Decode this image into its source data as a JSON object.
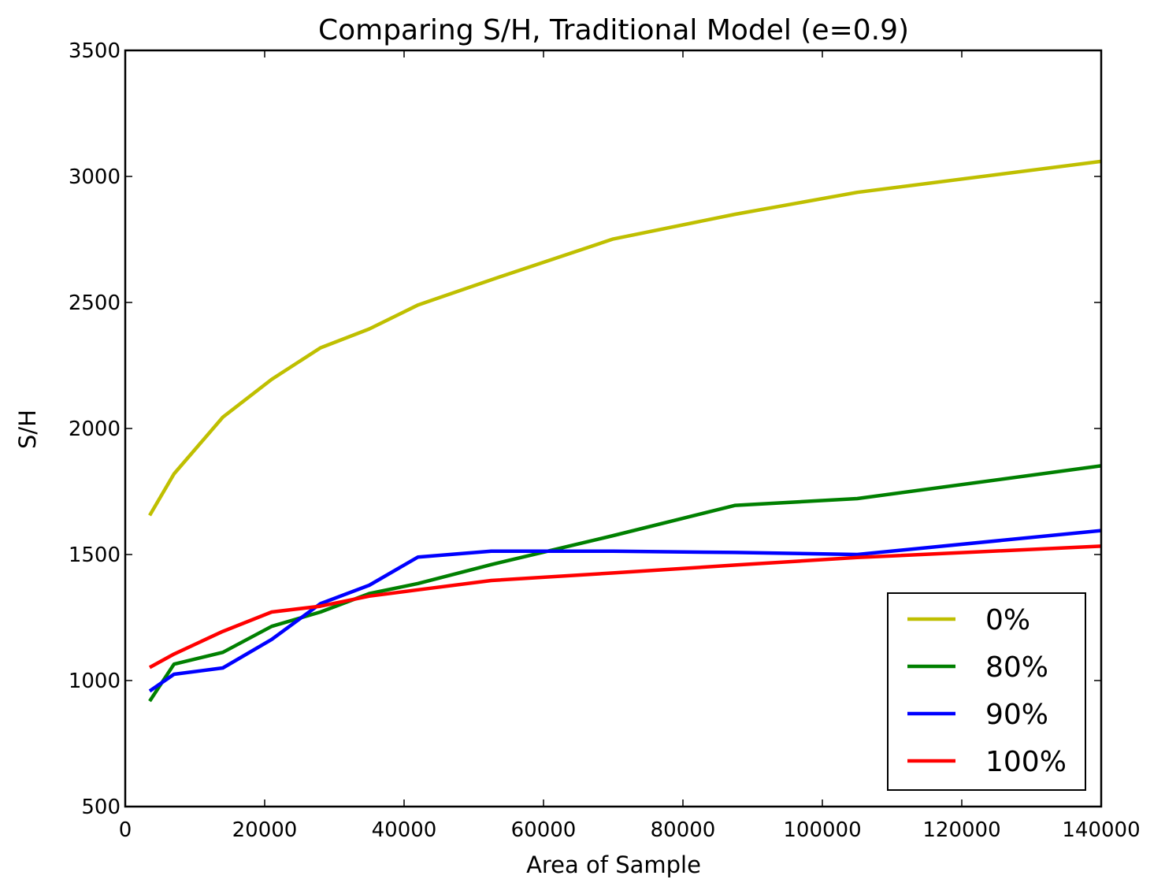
{
  "chart_data": {
    "type": "line",
    "title": "Comparing S/H, Traditional Model (e=0.9)",
    "xlabel": "Area of Sample",
    "ylabel": "S/H",
    "xlim": [
      0,
      140000
    ],
    "ylim": [
      500,
      3500
    ],
    "xticks": [
      0,
      20000,
      40000,
      60000,
      80000,
      100000,
      120000,
      140000
    ],
    "xtick_labels": [
      "0",
      "20000",
      "40000",
      "60000",
      "80000",
      "100000",
      "120000",
      "140000"
    ],
    "yticks": [
      500,
      1000,
      1500,
      2000,
      2500,
      3000,
      3500
    ],
    "ytick_labels": [
      "500",
      "1000",
      "1500",
      "2000",
      "2500",
      "3000",
      "3500"
    ],
    "grid": false,
    "legend_position": "lower-right",
    "series": [
      {
        "name": "0%",
        "color": "#bfbf00",
        "points": [
          [
            3500,
            1655
          ],
          [
            7000,
            1820
          ],
          [
            14000,
            2045
          ],
          [
            21000,
            2195
          ],
          [
            28000,
            2320
          ],
          [
            35000,
            2395
          ],
          [
            42000,
            2490
          ],
          [
            52500,
            2590
          ],
          [
            70000,
            2752
          ],
          [
            87500,
            2850
          ],
          [
            105000,
            2937
          ],
          [
            140000,
            3060
          ]
        ]
      },
      {
        "name": "80%",
        "color": "#008000",
        "points": [
          [
            3500,
            918
          ],
          [
            7000,
            1065
          ],
          [
            14000,
            1112
          ],
          [
            21000,
            1215
          ],
          [
            28000,
            1272
          ],
          [
            35000,
            1345
          ],
          [
            42000,
            1385
          ],
          [
            52500,
            1460
          ],
          [
            70000,
            1575
          ],
          [
            87500,
            1695
          ],
          [
            105000,
            1722
          ],
          [
            140000,
            1852
          ]
        ]
      },
      {
        "name": "90%",
        "color": "#0000ff",
        "points": [
          [
            3500,
            958
          ],
          [
            7000,
            1025
          ],
          [
            14000,
            1050
          ],
          [
            21000,
            1163
          ],
          [
            28000,
            1305
          ],
          [
            35000,
            1378
          ],
          [
            42000,
            1490
          ],
          [
            52500,
            1513
          ],
          [
            70000,
            1513
          ],
          [
            87500,
            1508
          ],
          [
            105000,
            1500
          ],
          [
            140000,
            1595
          ]
        ]
      },
      {
        "name": "100%",
        "color": "#ff0000",
        "points": [
          [
            3500,
            1052
          ],
          [
            7000,
            1105
          ],
          [
            14000,
            1195
          ],
          [
            21000,
            1272
          ],
          [
            28000,
            1295
          ],
          [
            35000,
            1335
          ],
          [
            42000,
            1360
          ],
          [
            52500,
            1397
          ],
          [
            70000,
            1427
          ],
          [
            87500,
            1458
          ],
          [
            105000,
            1488
          ],
          [
            140000,
            1533
          ]
        ]
      }
    ]
  }
}
